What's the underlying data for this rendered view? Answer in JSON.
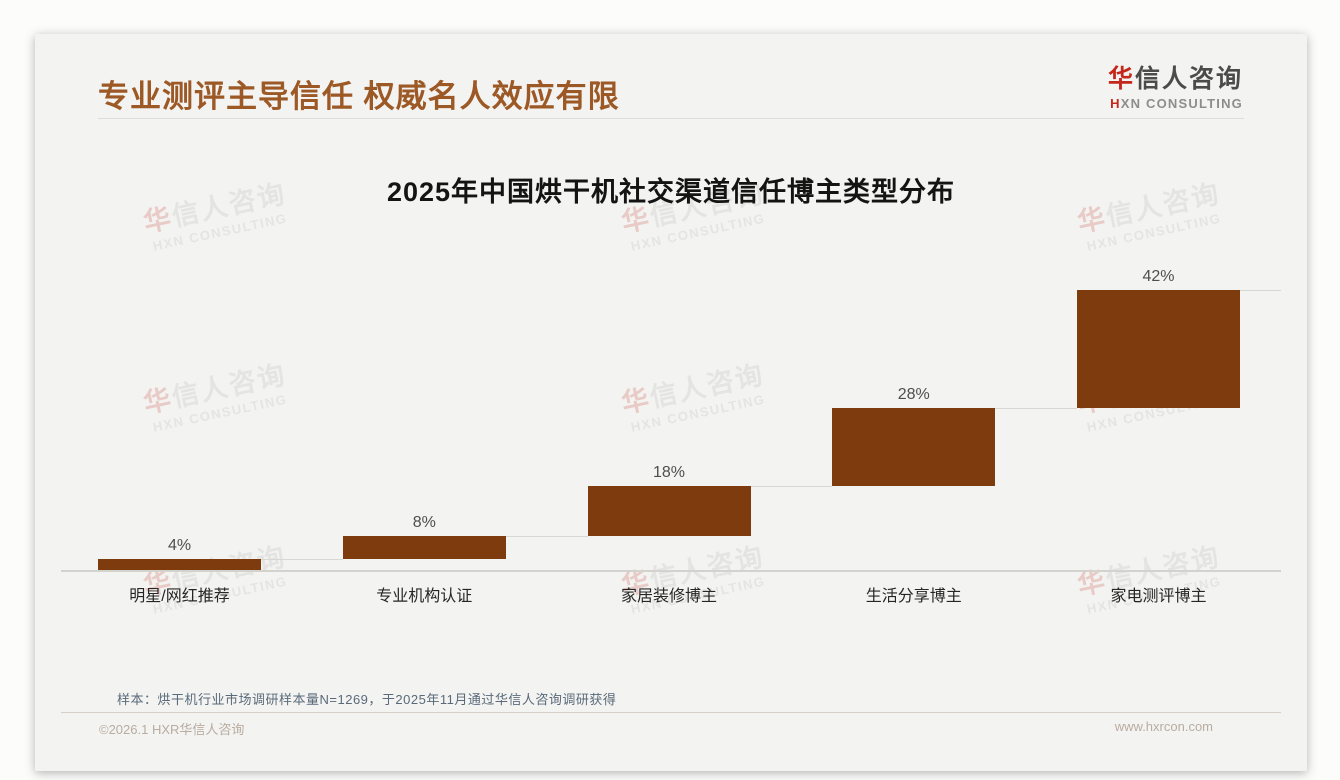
{
  "header": {
    "title": "专业测评主导信任 权威名人效应有限",
    "logo": {
      "zh_accent": "华",
      "zh_rest": "信人咨询",
      "en_accent": "H",
      "en_rest": "XN CONSULTING"
    }
  },
  "chart_data": {
    "type": "bar",
    "variant": "ascending-stair: each bar's base sits at the cumulative top of the previous bar, with waterfall-style step connector lines",
    "title": "2025年中国烘干机社交渠道信任博主类型分布",
    "categories": [
      "明星/网红推荐",
      "专业机构认证",
      "家居装修博主",
      "生活分享博主",
      "家电测评博主"
    ],
    "values": [
      4,
      8,
      18,
      28,
      42
    ],
    "value_labels": [
      "4%",
      "8%",
      "18%",
      "28%",
      "42%"
    ],
    "cumulative": [
      4,
      12,
      30,
      58,
      100
    ],
    "unit": "%",
    "ylim": [
      0,
      100
    ],
    "xlabel": "",
    "ylabel": "",
    "grid": false,
    "legend": false,
    "connector_lines": true,
    "bar_color": "#7d3b0e"
  },
  "notes": {
    "sample": "样本：烘干机行业市场调研样本量N=1269，于2025年11月通过华信人咨询调研获得"
  },
  "footer": {
    "copyright": "©2026.1 HXR华信人咨询",
    "website": "www.hxrcon.com"
  },
  "watermark": {
    "zh": "华信人咨询",
    "en": "HXN CONSULTING"
  },
  "colors": {
    "accent_red": "#c4271b",
    "title_brown": "#9c5926",
    "bar_brown": "#7d3b0e",
    "note_blue_gray": "#5a6a7a",
    "footer_tan": "#b9aca0",
    "card_bg": "#f3f3f1"
  }
}
